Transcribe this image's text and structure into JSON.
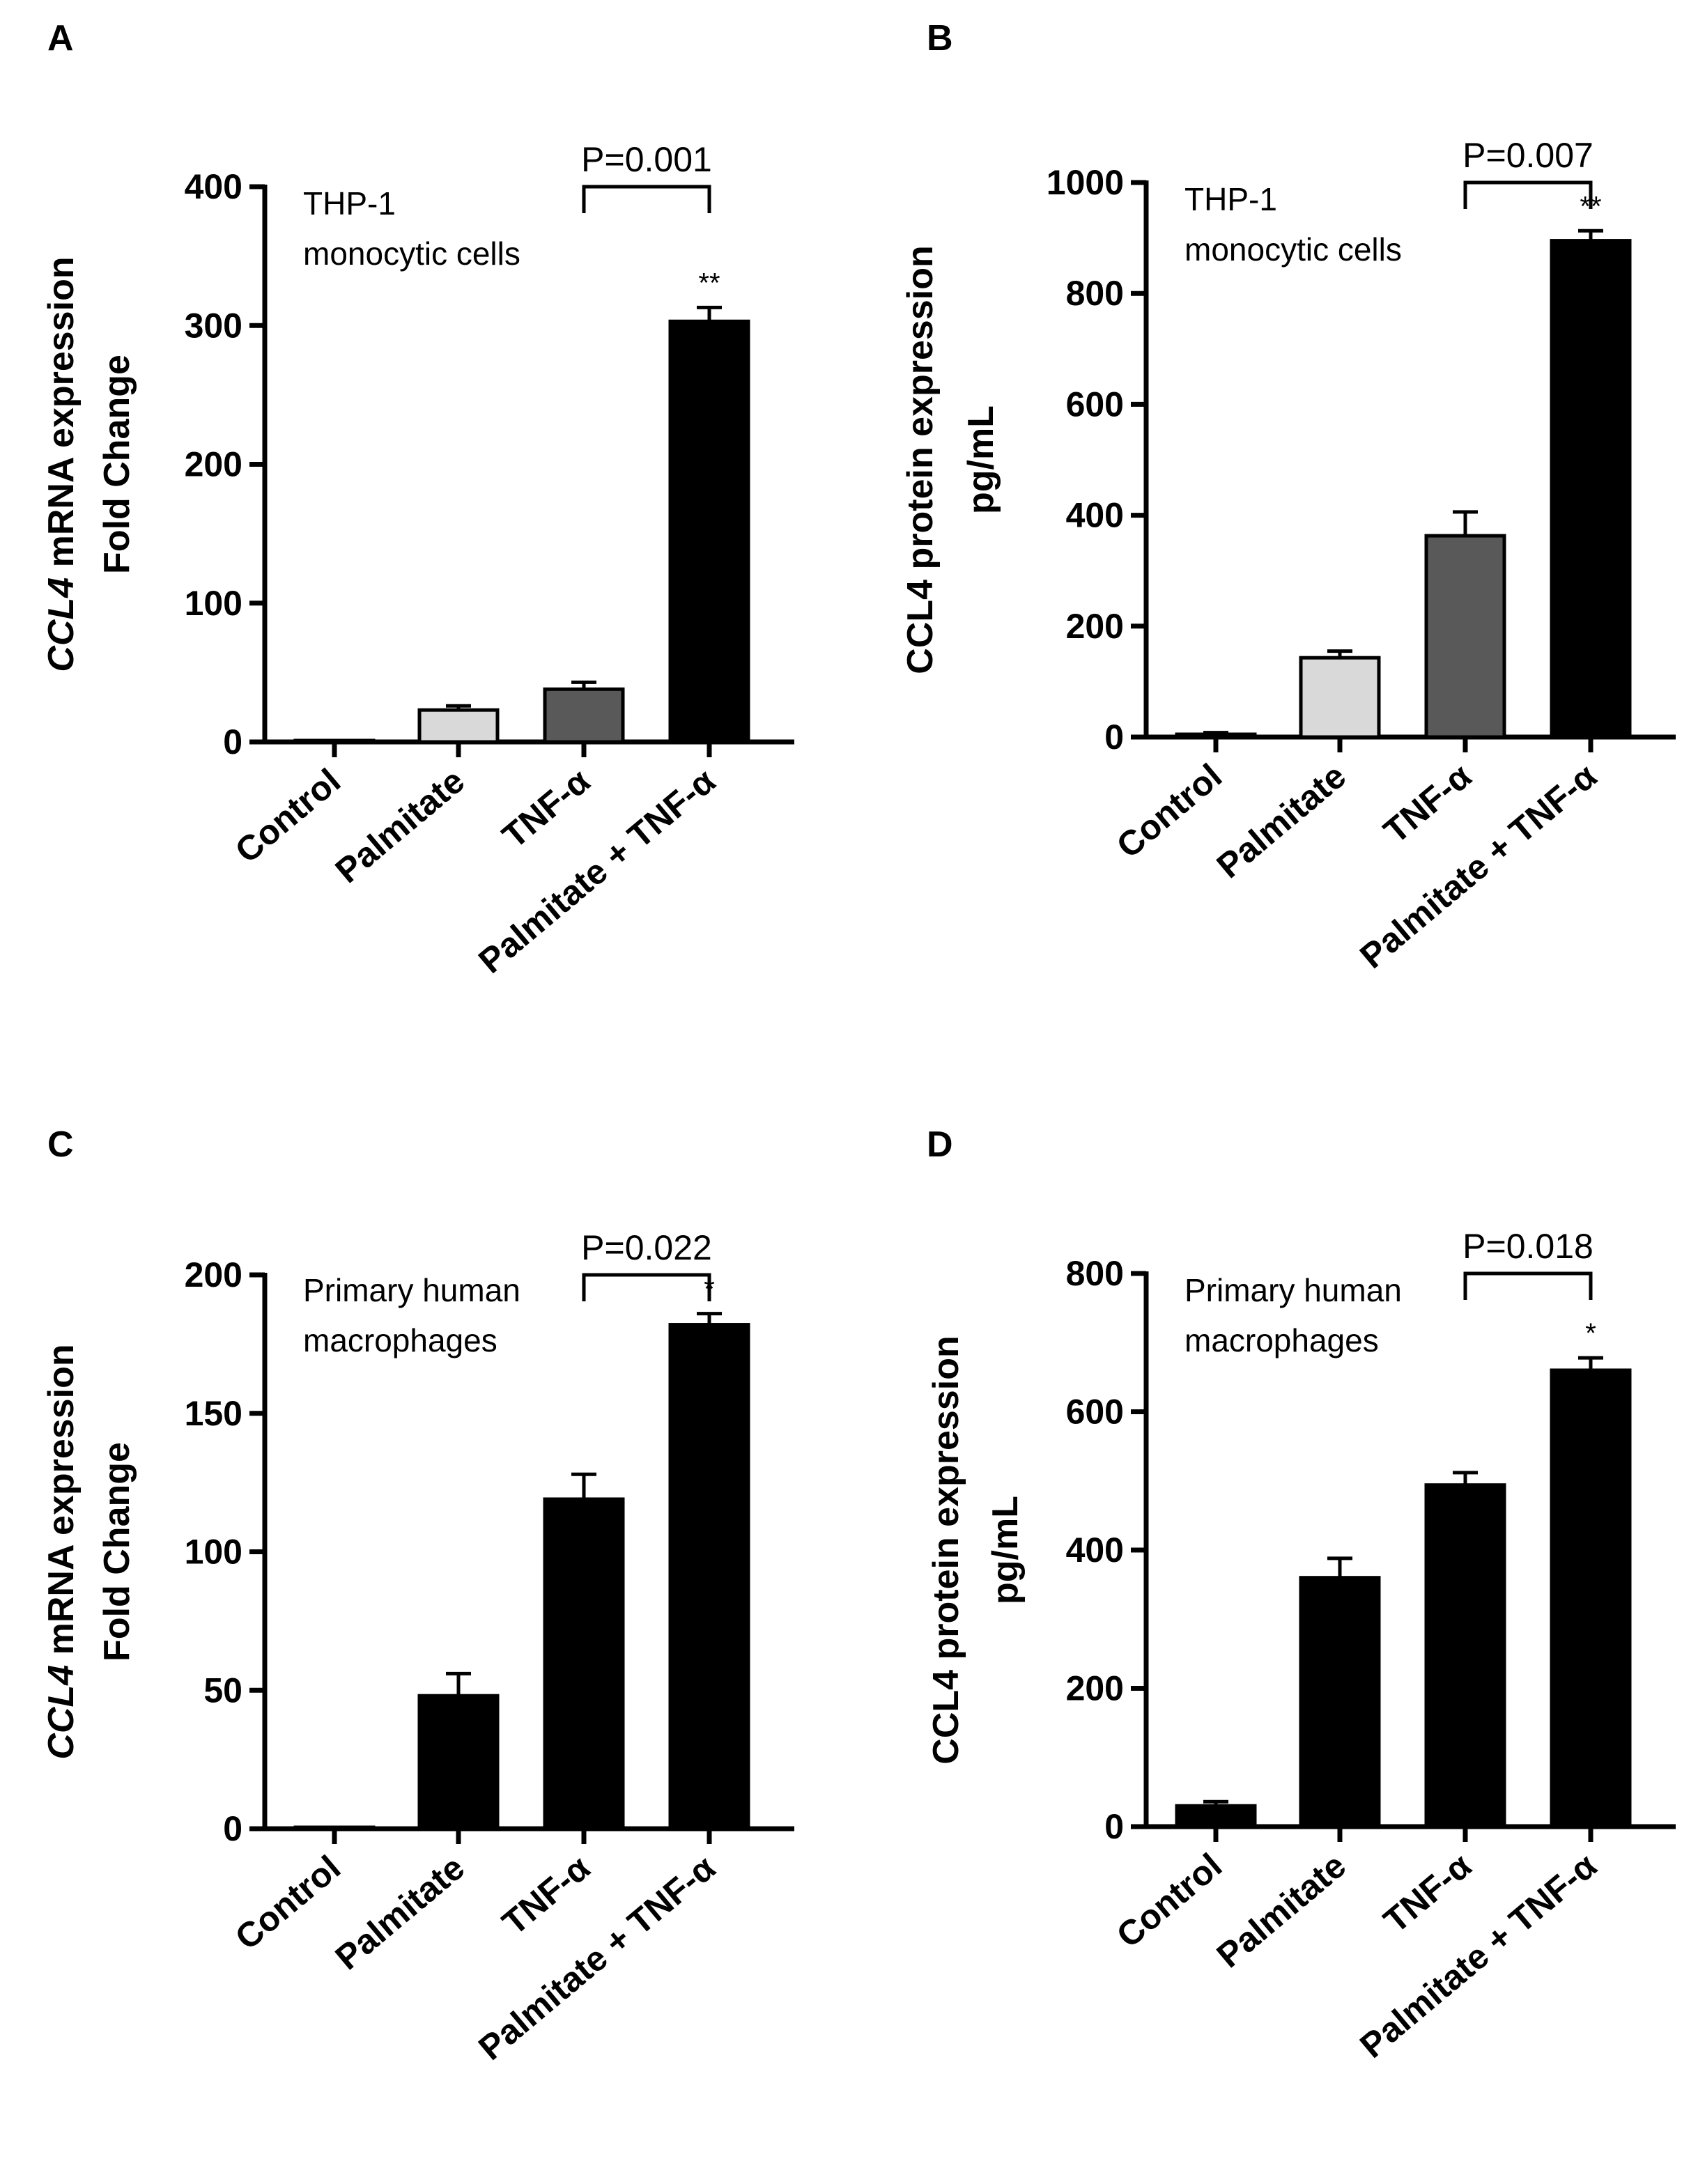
{
  "chart_data": [
    {
      "type": "bar",
      "panel": "A",
      "ylabel_lines": [
        [
          "CCL4",
          " mRNA expression"
        ],
        [
          "Fold Change"
        ]
      ],
      "ylabel_italic_first": true,
      "ylim": [
        0,
        400
      ],
      "yticks": [
        0,
        100,
        200,
        300,
        400
      ],
      "annotation": [
        "THP-1",
        "monocytic cells"
      ],
      "categories": [
        "Control",
        "Palmitate",
        "TNF-α",
        "Palmitate + TNF-α"
      ],
      "values": [
        1,
        23,
        38,
        303
      ],
      "errors": [
        0,
        3,
        5,
        10
      ],
      "colors": [
        "#ffffff",
        "#d9d9d9",
        "#595959",
        "#000000"
      ],
      "significance": [
        "",
        "",
        "",
        "**"
      ],
      "comparison": {
        "from": 2,
        "to": 3,
        "label": "P=0.001"
      }
    },
    {
      "type": "bar",
      "panel": "B",
      "ylabel_lines": [
        [
          "CCL4 protein expression"
        ],
        [
          "pg/mL"
        ]
      ],
      "ylabel_italic_first": false,
      "ylim": [
        0,
        1000
      ],
      "yticks": [
        0,
        200,
        400,
        600,
        800,
        1000
      ],
      "annotation": [
        "THP-1",
        "monocytic cells"
      ],
      "categories": [
        "Control",
        "Palmitate",
        "TNF-α",
        "Palmitate + TNF-α"
      ],
      "values": [
        5,
        143,
        363,
        895
      ],
      "errors": [
        3,
        12,
        43,
        18
      ],
      "colors": [
        "#ffffff",
        "#d9d9d9",
        "#595959",
        "#000000"
      ],
      "significance": [
        "",
        "",
        "",
        "**"
      ],
      "comparison": {
        "from": 2,
        "to": 3,
        "label": "P=0.007"
      }
    },
    {
      "type": "bar",
      "panel": "C",
      "ylabel_lines": [
        [
          "CCL4",
          " mRNA expression"
        ],
        [
          "Fold Change"
        ]
      ],
      "ylabel_italic_first": true,
      "ylim": [
        0,
        200
      ],
      "yticks": [
        0,
        50,
        100,
        150,
        200
      ],
      "annotation": [
        "Primary human",
        "macrophages"
      ],
      "categories": [
        "Control",
        "Palmitate",
        "TNF-α",
        "Palmitate + TNF-α"
      ],
      "values": [
        0.5,
        48,
        119,
        182
      ],
      "errors": [
        0,
        8,
        9,
        4
      ],
      "colors": [
        "#000000",
        "#000000",
        "#000000",
        "#000000"
      ],
      "significance": [
        "",
        "",
        "",
        "*"
      ],
      "comparison": {
        "from": 2,
        "to": 3,
        "label": "P=0.022"
      }
    },
    {
      "type": "bar",
      "panel": "D",
      "ylabel_lines": [
        [
          "CCL4 protein expression"
        ],
        [
          "pg/mL"
        ]
      ],
      "ylabel_italic_first": false,
      "ylim": [
        0,
        800
      ],
      "yticks": [
        0,
        200,
        400,
        600,
        800
      ],
      "annotation": [
        "Primary human",
        "macrophages"
      ],
      "categories": [
        "Control",
        "Palmitate",
        "TNF-α",
        "Palmitate + TNF-α"
      ],
      "values": [
        30,
        360,
        494,
        660
      ],
      "errors": [
        6,
        28,
        18,
        18
      ],
      "colors": [
        "#000000",
        "#000000",
        "#000000",
        "#000000"
      ],
      "significance": [
        "",
        "",
        "",
        "*"
      ],
      "comparison": {
        "from": 2,
        "to": 3,
        "label": "P=0.018"
      }
    }
  ]
}
